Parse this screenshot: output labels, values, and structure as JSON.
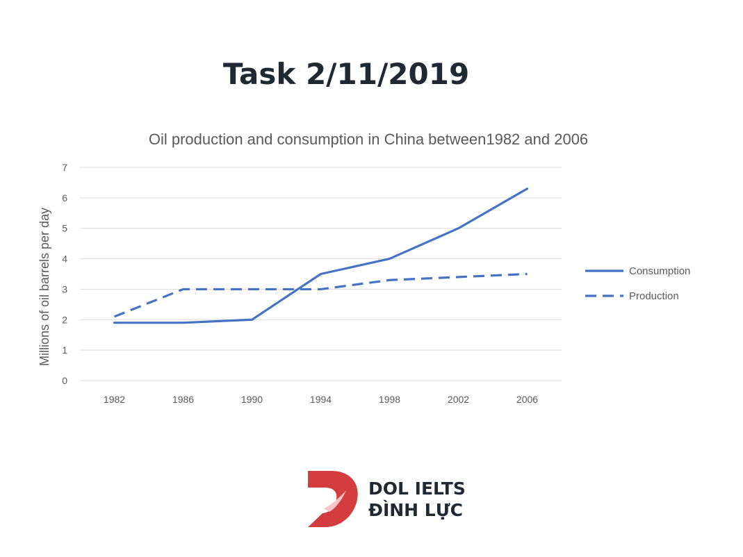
{
  "heading": "Task 2/11/2019",
  "chart_data": {
    "type": "line",
    "title": "Oil production and consumption in China between1982 and 2006",
    "xlabel": "",
    "ylabel": "Millions of oil barrels per day",
    "categories": [
      "1982",
      "1986",
      "1990",
      "1994",
      "1998",
      "2002",
      "2006"
    ],
    "ylim": [
      0,
      7
    ],
    "yticks": [
      0,
      1,
      2,
      3,
      4,
      5,
      6,
      7
    ],
    "grid": true,
    "legend_position": "right",
    "series": [
      {
        "name": "Consumption",
        "style": "solid",
        "color": "#4472c4",
        "values": [
          1.9,
          1.9,
          2.0,
          3.5,
          4.0,
          5.0,
          6.3
        ]
      },
      {
        "name": "Production",
        "style": "dashed",
        "color": "#4472c4",
        "values": [
          2.1,
          3.0,
          3.0,
          3.0,
          3.3,
          3.4,
          3.5
        ]
      }
    ]
  },
  "logo": {
    "line1": "DOL IELTS",
    "line2": "ĐÌNH LỰC",
    "mark_color": "#d43d3f"
  }
}
